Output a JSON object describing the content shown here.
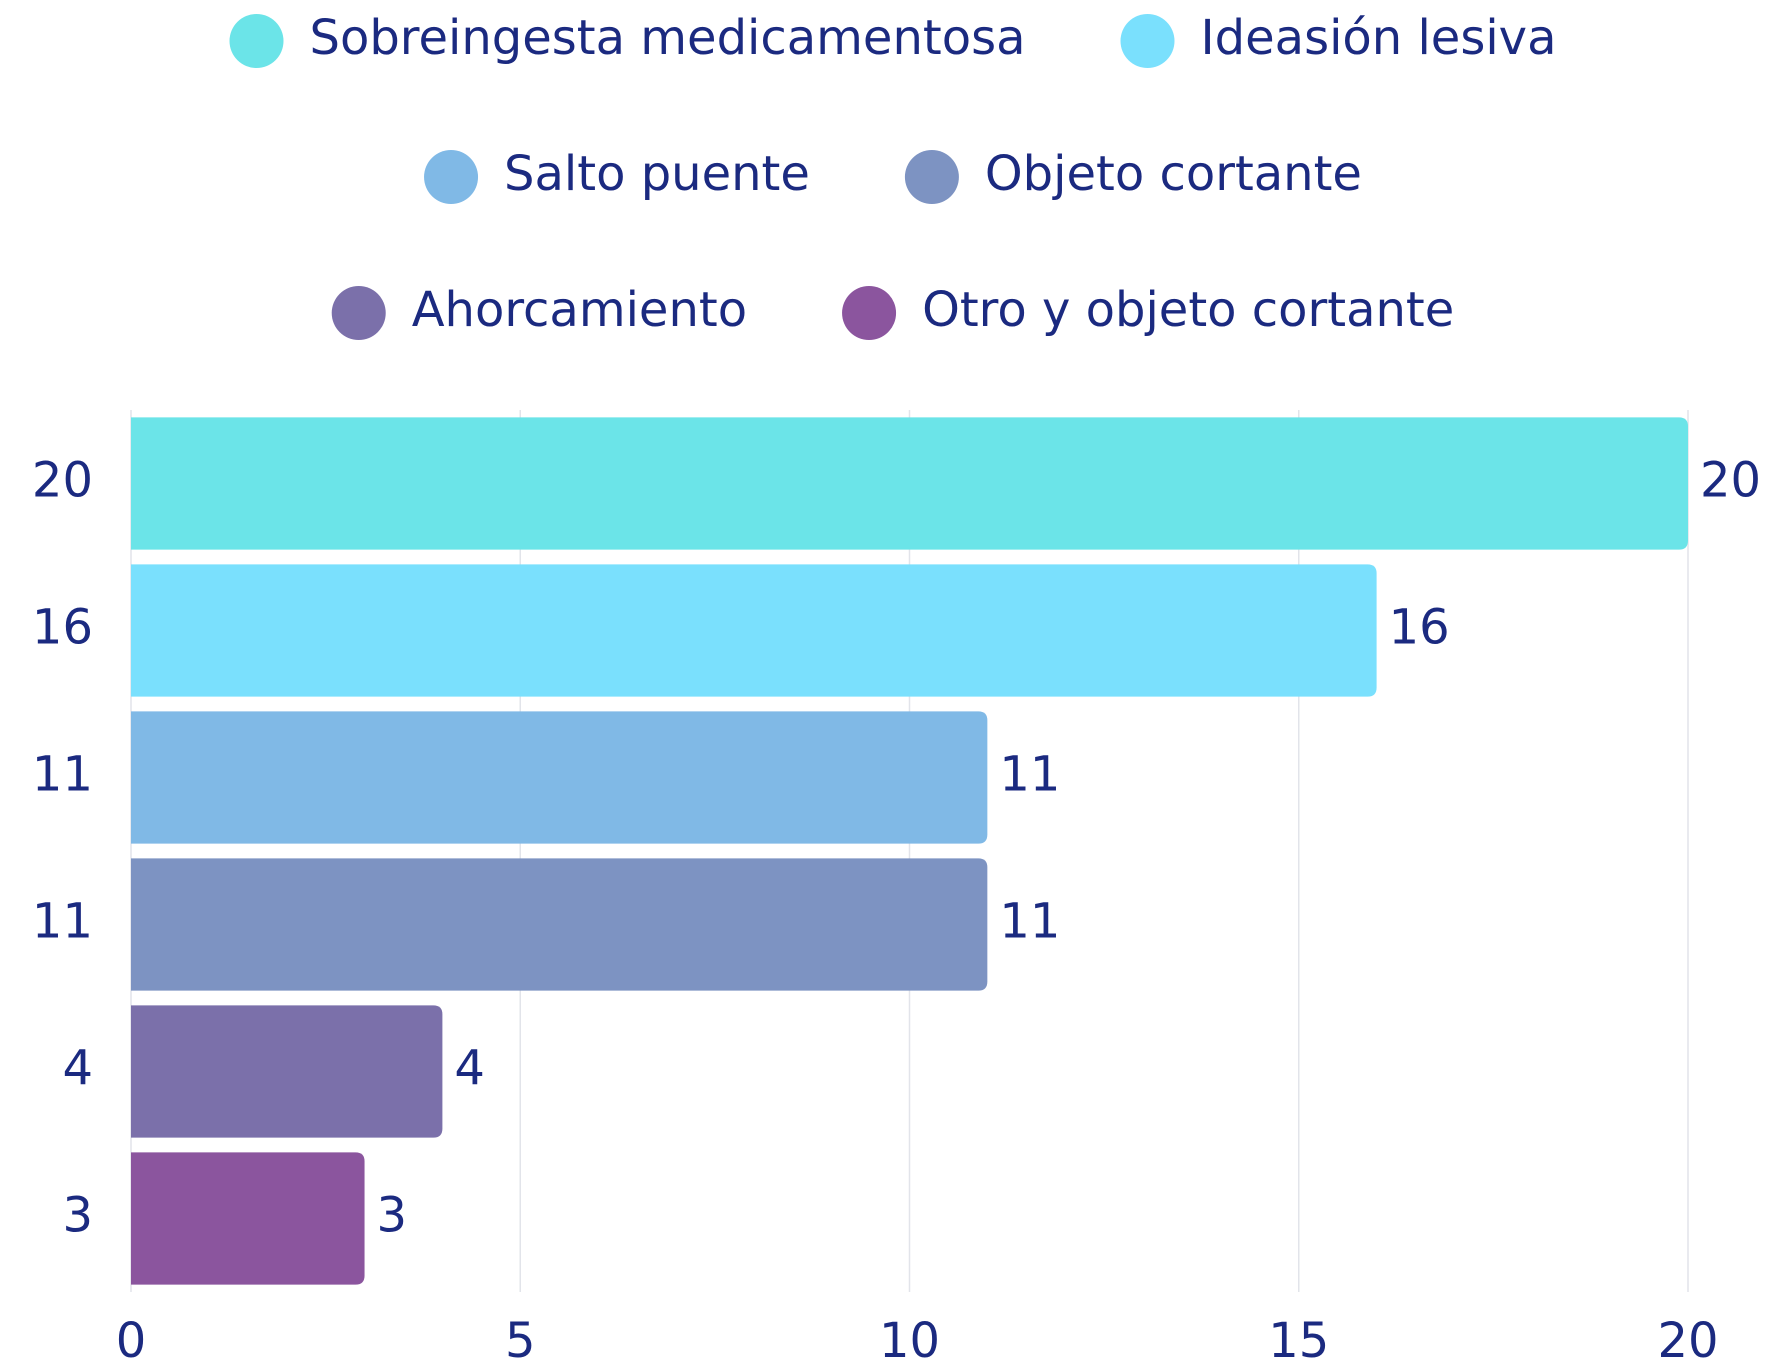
{
  "chart_data": {
    "type": "bar",
    "orientation": "horizontal",
    "categories": [
      "Sobreingesta medicamentosa",
      "Ideasión lesiva",
      "Salto puente",
      "Objeto cortante",
      "Ahorcamiento",
      "Otro y objeto cortante"
    ],
    "values": [
      20,
      16,
      11,
      11,
      4,
      3
    ],
    "colors": [
      "#6be4e8",
      "#7ae0fd",
      "#80b9e6",
      "#7d93c2",
      "#7b70aa",
      "#8b559e"
    ],
    "xlim": [
      0,
      20
    ],
    "xticks": [
      0,
      5,
      10,
      15,
      20
    ],
    "grid": true
  }
}
